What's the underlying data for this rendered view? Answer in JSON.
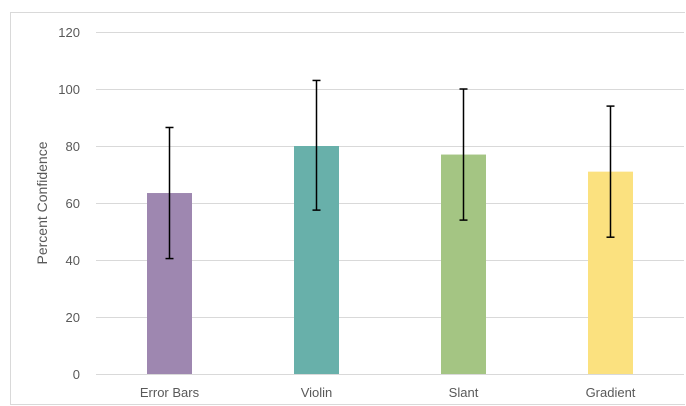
{
  "chart_data": {
    "type": "bar",
    "title": "",
    "xlabel": "",
    "ylabel": "Percent Confidence",
    "categories": [
      "Error Bars",
      "Violin",
      "Slant",
      "Gradient"
    ],
    "values": [
      63.5,
      80,
      77,
      71
    ],
    "error_low": [
      40.5,
      57.5,
      54,
      48
    ],
    "error_high": [
      86.5,
      103,
      100,
      94
    ],
    "ylim": [
      0,
      120
    ],
    "yticks": [
      0,
      20,
      40,
      60,
      80,
      100,
      120
    ],
    "grid": true,
    "legend": "none",
    "colors": [
      "#9e87b0",
      "#68b0aa",
      "#a4c583",
      "#fbe17f"
    ],
    "gridline_color": "#d9d9d9",
    "error_bar_color": "#000000"
  }
}
